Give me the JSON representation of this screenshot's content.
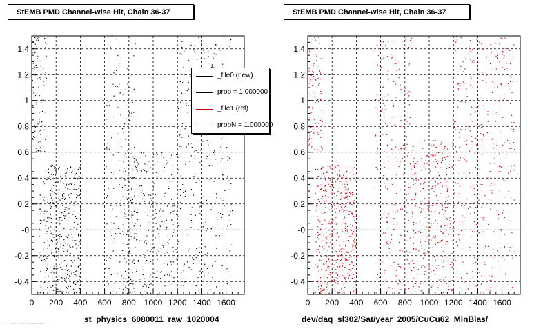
{
  "chart_data": [
    {
      "type": "scatter",
      "title": "StEMB PMD Channel-wise Hit, Chain 36-37",
      "xlabel": "st_physics_6080011_raw_1020004",
      "ylabel": "",
      "xlim": [
        0,
        1750
      ],
      "ylim": [
        -0.5,
        1.5
      ],
      "xticks": [
        0,
        200,
        400,
        600,
        800,
        1000,
        1200,
        1400,
        1600
      ],
      "yticks": [
        -0.4,
        -0.2,
        0,
        0.2,
        0.4,
        0.6,
        0.8,
        1,
        1.2,
        1.4
      ],
      "ytick_labels": [
        "-0.4",
        "-0.2",
        "-0",
        "0.2",
        "0.4",
        "0.6",
        "0.8",
        "1",
        "1.2",
        "1.4"
      ],
      "grid": true,
      "marker_color": "#000000",
      "series": [
        {
          "name": "_file0 (new)",
          "color": "#000000"
        }
      ],
      "legend": {
        "placement": "top-right",
        "entries": [
          {
            "label": "_file0 (new)",
            "color": "#000000"
          },
          {
            "label": "prob = 1.000000",
            "color": "#000000"
          },
          {
            "label": "_file1 (ref)",
            "color": "#cc0000"
          },
          {
            "label": "probN = 1.000000",
            "color": "#cc0000"
          }
        ]
      },
      "density_regions": [
        {
          "x": [
            60,
            400
          ],
          "y": [
            -0.5,
            0.5
          ],
          "weight": 0.34
        },
        {
          "x": [
            600,
            850
          ],
          "y": [
            -0.5,
            1.5
          ],
          "weight": 0.12
        },
        {
          "x": [
            750,
            1200
          ],
          "y": [
            -0.5,
            0.6
          ],
          "weight": 0.22
        },
        {
          "x": [
            1200,
            1450
          ],
          "y": [
            -0.5,
            1.5
          ],
          "weight": 0.14
        },
        {
          "x": [
            1450,
            1650
          ],
          "y": [
            -0.5,
            1.5
          ],
          "weight": 0.1
        },
        {
          "x": [
            0,
            120
          ],
          "y": [
            0.6,
            1.5
          ],
          "weight": 0.08
        }
      ],
      "point_count": 1400
    },
    {
      "type": "scatter",
      "title": "StEMB PMD Channel-wise Hit, Chain 36-37",
      "xlabel": "dev/daq_sl302/Sat/year_2005/CuCu62_MinBias/",
      "ylabel": "",
      "xlim": [
        0,
        1750
      ],
      "ylim": [
        -0.5,
        1.5
      ],
      "xticks": [
        0,
        200,
        400,
        600,
        800,
        1000,
        1200,
        1400,
        1600
      ],
      "yticks": [
        -0.4,
        -0.2,
        0,
        0.2,
        0.4,
        0.6,
        0.8,
        1,
        1.2,
        1.4
      ],
      "ytick_labels": [
        "-0.4",
        "-0.2",
        "-0",
        "0.2",
        "0.4",
        "0.6",
        "0.8",
        "1",
        "1.2",
        "1.4"
      ],
      "grid": true,
      "marker_color": "#cc0000",
      "series": [
        {
          "name": "_file1 (ref)",
          "color": "#cc0000"
        }
      ],
      "density_regions": [
        {
          "x": [
            60,
            400
          ],
          "y": [
            -0.5,
            0.5
          ],
          "weight": 0.3
        },
        {
          "x": [
            550,
            850
          ],
          "y": [
            -0.5,
            1.5
          ],
          "weight": 0.16
        },
        {
          "x": [
            850,
            1200
          ],
          "y": [
            -0.5,
            0.7
          ],
          "weight": 0.22
        },
        {
          "x": [
            1200,
            1450
          ],
          "y": [
            -0.5,
            1.5
          ],
          "weight": 0.14
        },
        {
          "x": [
            1450,
            1700
          ],
          "y": [
            -0.5,
            1.5
          ],
          "weight": 0.12
        },
        {
          "x": [
            0,
            120
          ],
          "y": [
            0.6,
            1.5
          ],
          "weight": 0.06
        }
      ],
      "point_count": 1600
    }
  ]
}
